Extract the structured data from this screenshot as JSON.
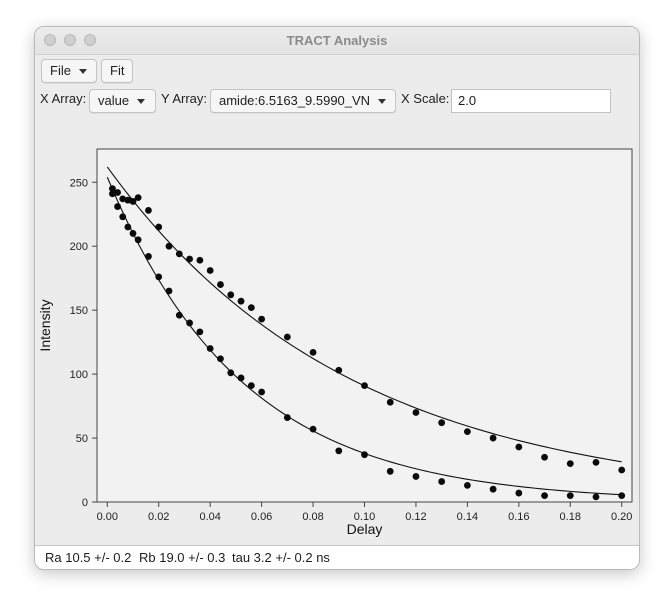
{
  "window": {
    "title": "TRACT Analysis"
  },
  "toolbar": {
    "file_label": "File",
    "fit_label": "Fit"
  },
  "controls": {
    "x_array_label": "X Array:",
    "x_array_value": "value",
    "y_array_label": "Y Array:",
    "y_array_value": "amide:6.5163_9.5990_VN",
    "x_scale_label": "X Scale:",
    "x_scale_value": "2.0"
  },
  "status": {
    "ra": "Ra 10.5 +/- 0.2",
    "rb": "Rb 19.0 +/- 0.3",
    "tau": "tau 3.2 +/- 0.2 ns"
  },
  "chart_data": {
    "type": "scatter",
    "xlabel": "Delay",
    "ylabel": "Intensity",
    "xlim": [
      -0.004,
      0.204
    ],
    "ylim": [
      0,
      276
    ],
    "xticks": [
      "0.00",
      "0.02",
      "0.04",
      "0.06",
      "0.08",
      "0.10",
      "0.12",
      "0.14",
      "0.16",
      "0.18",
      "0.20"
    ],
    "xtick_values": [
      0,
      0.02,
      0.04,
      0.06,
      0.08,
      0.1,
      0.12,
      0.14,
      0.16,
      0.18,
      0.2
    ],
    "yticks": [
      "0",
      "50",
      "100",
      "150",
      "200",
      "250"
    ],
    "ytick_values": [
      0,
      50,
      100,
      150,
      200,
      250
    ],
    "series": [
      {
        "points": [
          [
            0.002,
            245
          ],
          [
            0.004,
            242
          ],
          [
            0.006,
            237
          ],
          [
            0.008,
            236
          ],
          [
            0.01,
            235
          ],
          [
            0.012,
            238
          ],
          [
            0.016,
            228
          ],
          [
            0.02,
            215
          ],
          [
            0.024,
            200
          ],
          [
            0.028,
            194
          ],
          [
            0.032,
            190
          ],
          [
            0.036,
            189
          ],
          [
            0.04,
            181
          ],
          [
            0.044,
            170
          ],
          [
            0.048,
            162
          ],
          [
            0.052,
            157
          ],
          [
            0.056,
            152
          ],
          [
            0.06,
            143
          ],
          [
            0.07,
            129
          ],
          [
            0.08,
            117
          ],
          [
            0.09,
            103
          ],
          [
            0.1,
            91
          ],
          [
            0.11,
            78
          ],
          [
            0.12,
            70
          ],
          [
            0.13,
            62
          ],
          [
            0.14,
            55
          ],
          [
            0.15,
            50
          ],
          [
            0.16,
            43
          ],
          [
            0.17,
            35
          ],
          [
            0.18,
            30
          ],
          [
            0.19,
            31
          ],
          [
            0.2,
            25
          ]
        ],
        "fit": {
          "a0": 262,
          "k": 10.6
        }
      },
      {
        "points": [
          [
            0.002,
            241
          ],
          [
            0.004,
            231
          ],
          [
            0.006,
            223
          ],
          [
            0.008,
            215
          ],
          [
            0.01,
            210
          ],
          [
            0.012,
            205
          ],
          [
            0.016,
            192
          ],
          [
            0.02,
            176
          ],
          [
            0.024,
            165
          ],
          [
            0.028,
            146
          ],
          [
            0.032,
            140
          ],
          [
            0.036,
            133
          ],
          [
            0.04,
            120
          ],
          [
            0.044,
            112
          ],
          [
            0.048,
            101
          ],
          [
            0.052,
            97
          ],
          [
            0.056,
            91
          ],
          [
            0.06,
            86
          ],
          [
            0.07,
            66
          ],
          [
            0.08,
            57
          ],
          [
            0.09,
            40
          ],
          [
            0.1,
            37
          ],
          [
            0.11,
            24
          ],
          [
            0.12,
            20
          ],
          [
            0.13,
            16
          ],
          [
            0.14,
            13
          ],
          [
            0.15,
            10
          ],
          [
            0.16,
            7
          ],
          [
            0.17,
            5
          ],
          [
            0.18,
            5
          ],
          [
            0.19,
            4
          ],
          [
            0.2,
            5
          ]
        ],
        "fit": {
          "a0": 254,
          "k": 19.0
        }
      }
    ]
  }
}
